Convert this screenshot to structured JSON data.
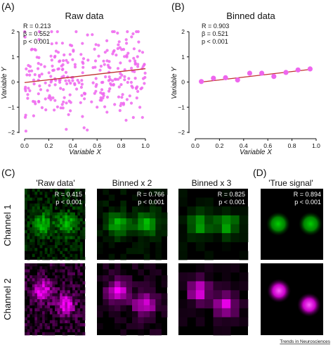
{
  "panels": {
    "A": {
      "letter": "(A)",
      "title": "Raw data",
      "stats": [
        "R = 0.213",
        "β = 0.552",
        "p < 0.001"
      ]
    },
    "B": {
      "letter": "(B)",
      "title": "Binned data",
      "stats": [
        "R = 0.903",
        "β = 0.521",
        "p < 0.001"
      ]
    },
    "C": {
      "letter": "(C)",
      "columns": [
        "'Raw data'",
        "Binned x 2",
        "Binned x 3"
      ],
      "stats": [
        [
          "R = 0.415",
          "p < 0.001"
        ],
        [
          "R = 0.766",
          "p < 0.001"
        ],
        [
          "R = 0.825",
          "p < 0.001"
        ]
      ]
    },
    "D": {
      "letter": "(D)",
      "column": "'True signal'",
      "stats": [
        "R = 0.894",
        "p < 0.001"
      ]
    }
  },
  "row_labels": [
    "Channel 1",
    "Channel 2"
  ],
  "footer": "Trends in Neurosciences",
  "colors": {
    "points": "#ee66ee",
    "fit": "#c03030",
    "green": "#00c800",
    "magenta": "#ff00ff",
    "background": "#000000"
  },
  "chart_data": [
    {
      "type": "scatter",
      "title": "Raw data",
      "xlabel": "Variable X",
      "ylabel": "Variable Y",
      "xlim": [
        0,
        1
      ],
      "ylim": [
        -2,
        2
      ],
      "xticks": [
        "0.0",
        "0.2",
        "0.4",
        "0.6",
        "0.8",
        "1.0"
      ],
      "yticks": [
        "2",
        "1",
        "0",
        "−1",
        "−2"
      ],
      "n_points": 300,
      "fit": {
        "x": [
          0,
          1
        ],
        "y": [
          -0.02,
          0.53
        ]
      },
      "stats": {
        "R": 0.213,
        "beta": 0.552,
        "p": "< 0.001"
      }
    },
    {
      "type": "scatter",
      "title": "Binned data",
      "xlabel": "Variable X",
      "ylabel": "Variable Y",
      "xlim": [
        0,
        1
      ],
      "ylim": [
        -2,
        2
      ],
      "xticks": [
        "0.0",
        "0.2",
        "0.4",
        "0.6",
        "0.8",
        "1.0"
      ],
      "yticks": [
        "2",
        "1",
        "0",
        "−1",
        "−2"
      ],
      "x": [
        0.05,
        0.15,
        0.25,
        0.35,
        0.45,
        0.55,
        0.65,
        0.75,
        0.85,
        0.95
      ],
      "y": [
        0.02,
        0.15,
        0.17,
        0.08,
        0.35,
        0.35,
        0.22,
        0.38,
        0.48,
        0.52
      ],
      "fit": {
        "x": [
          0.05,
          0.95
        ],
        "y": [
          0.0,
          0.5
        ]
      },
      "stats": {
        "R": 0.903,
        "beta": 0.521,
        "p": "< 0.001"
      }
    },
    {
      "type": "heatmap",
      "title": "'Raw data'",
      "grid": 24,
      "stats": {
        "R": 0.415,
        "p": "< 0.001"
      }
    },
    {
      "type": "heatmap",
      "title": "Binned x 2",
      "grid": 12,
      "stats": {
        "R": 0.766,
        "p": "< 0.001"
      }
    },
    {
      "type": "heatmap",
      "title": "Binned x 3",
      "grid": 8,
      "stats": {
        "R": 0.825,
        "p": "< 0.001"
      }
    },
    {
      "type": "heatmap",
      "title": "'True signal'",
      "stats": {
        "R": 0.894,
        "p": "< 0.001"
      }
    }
  ]
}
